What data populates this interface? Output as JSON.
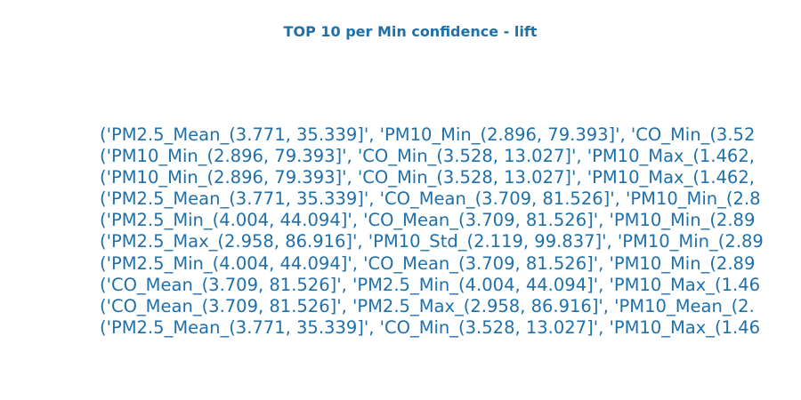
{
  "chart_data": {
    "type": "table",
    "title": "TOP 10 per Min confidence - lift",
    "rows": [
      "('PM2.5_Mean_(3.771, 35.339]', 'PM10_Min_(2.896, 79.393]', 'CO_Min_(3.52",
      "('PM10_Min_(2.896, 79.393]', 'CO_Min_(3.528, 13.027]', 'PM10_Max_(1.462,",
      "('PM10_Min_(2.896, 79.393]', 'CO_Min_(3.528, 13.027]', 'PM10_Max_(1.462,",
      "('PM2.5_Mean_(3.771, 35.339]', 'CO_Mean_(3.709, 81.526]', 'PM10_Min_(2.8",
      "('PM2.5_Min_(4.004, 44.094]', 'CO_Mean_(3.709, 81.526]', 'PM10_Min_(2.89",
      "('PM2.5_Max_(2.958, 86.916]', 'PM10_Std_(2.119, 99.837]', 'PM10_Min_(2.89",
      "('PM2.5_Min_(4.004, 44.094]', 'CO_Mean_(3.709, 81.526]', 'PM10_Min_(2.89",
      "('CO_Mean_(3.709, 81.526]', 'PM2.5_Min_(4.004, 44.094]', 'PM10_Max_(1.46",
      "('CO_Mean_(3.709, 81.526]', 'PM2.5_Max_(2.958, 86.916]', 'PM10_Mean_(2.",
      "('PM2.5_Mean_(3.771, 35.339]', 'CO_Min_(3.528, 13.027]', 'PM10_Max_(1.46"
    ]
  }
}
